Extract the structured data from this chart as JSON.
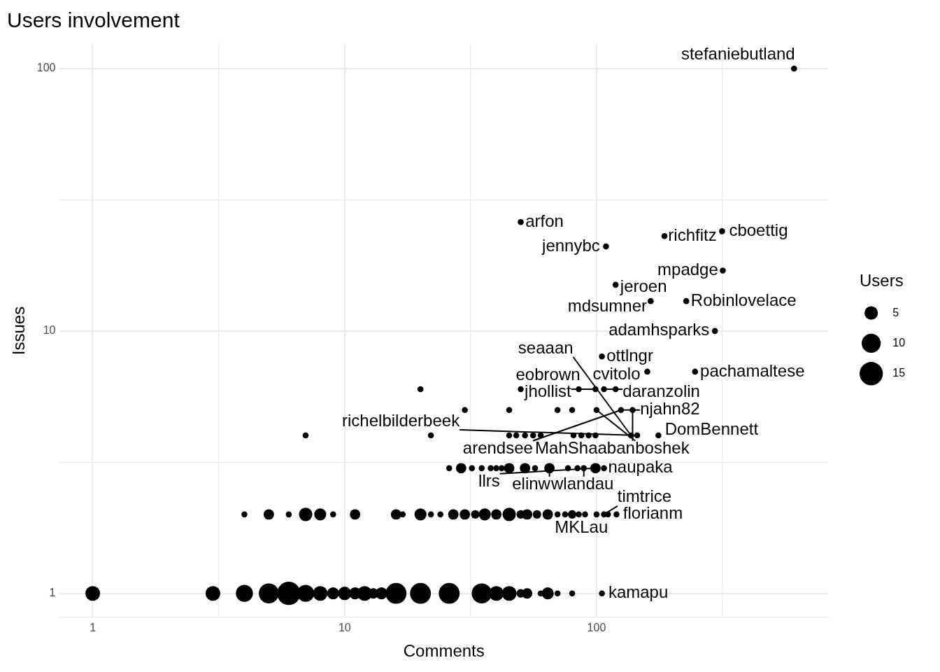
{
  "chart_data": {
    "type": "bubble",
    "title": "Users involvement",
    "xlabel": "Comments",
    "ylabel": "Issues",
    "legend_title": "Users",
    "log": "xy",
    "grid": true,
    "xlim": [
      0.74,
      830
    ],
    "ylim": [
      0.81,
      124
    ],
    "xticks": [
      1,
      {
        "value": 3.162,
        "label": null
      },
      10,
      {
        "value": 31.62,
        "label": null
      },
      100,
      {
        "value": 316.2,
        "label": null
      }
    ],
    "yticks": [
      1,
      {
        "value": 3.162,
        "label": null
      },
      10,
      {
        "value": 31.62,
        "label": null
      },
      100
    ],
    "size_legend": [
      5,
      10,
      15
    ],
    "series": [
      {
        "color": "#000000",
        "x": [
          1,
          3,
          4,
          5,
          6,
          7,
          8,
          9,
          10,
          11,
          12,
          13,
          14,
          16,
          20,
          26,
          35,
          40,
          45,
          50,
          53,
          60,
          64,
          70,
          80,
          105,
          4,
          5,
          6,
          7,
          8,
          9,
          11,
          16,
          17,
          20,
          22,
          24,
          27,
          30,
          33,
          36,
          40,
          45,
          50,
          53,
          58,
          64,
          70,
          75,
          80,
          85,
          90,
          100,
          107,
          111,
          120,
          26,
          29,
          32,
          35,
          38,
          40,
          42,
          45,
          52,
          57,
          65,
          77,
          84,
          89,
          99,
          107,
          7,
          22,
          45,
          48,
          52,
          56,
          60,
          81,
          87,
          93,
          99,
          137,
          145,
          176,
          30,
          45,
          70,
          80,
          100,
          125,
          139,
          20,
          50,
          85,
          99,
          107,
          119,
          159,
          246,
          105,
          295,
          164,
          227,
          119,
          317,
          109,
          186,
          315,
          50,
          608
        ],
        "values": [
          1,
          1,
          1,
          1,
          1,
          1,
          1,
          1,
          1,
          1,
          1,
          1,
          1,
          1,
          1,
          1,
          1,
          1,
          1,
          1,
          1,
          1,
          1,
          1,
          1,
          1,
          2,
          2,
          2,
          2,
          2,
          2,
          2,
          2,
          2,
          2,
          2,
          2,
          2,
          2,
          2,
          2,
          2,
          2,
          2,
          2,
          2,
          2,
          2,
          2,
          2,
          2,
          2,
          2,
          2,
          2,
          2,
          3,
          3,
          3,
          3,
          3,
          3,
          3,
          3,
          3,
          3,
          3,
          3,
          3,
          3,
          3,
          3,
          4,
          4,
          4,
          4,
          4,
          4,
          4,
          4,
          4,
          4,
          4,
          4,
          4,
          4,
          5,
          5,
          5,
          5,
          5,
          5,
          5,
          6,
          6,
          6,
          6,
          6,
          6,
          7,
          7,
          8,
          10,
          13,
          13,
          15,
          17,
          21,
          23,
          24,
          26,
          100
        ],
        "sizes": [
          6,
          6,
          8,
          11,
          15,
          8,
          6,
          4,
          5,
          4,
          6,
          3,
          4,
          12,
          12,
          12,
          11,
          6,
          6,
          2,
          3,
          1,
          4,
          1,
          1,
          1,
          1,
          3,
          1,
          5,
          4,
          1,
          3,
          3,
          1,
          4,
          1,
          1,
          3,
          3,
          2,
          4,
          3,
          5,
          2,
          3,
          2,
          3,
          1,
          1,
          2,
          1,
          1,
          1,
          1,
          1,
          1,
          1,
          3,
          1,
          1,
          1,
          1,
          1,
          3,
          3,
          1,
          3,
          1,
          1,
          1,
          3,
          1,
          1,
          1,
          1,
          1,
          1,
          1,
          1,
          1,
          1,
          1,
          1,
          1,
          1,
          1,
          1,
          1,
          1,
          1,
          1,
          1,
          1,
          1,
          1,
          1,
          1,
          1,
          1,
          1,
          1,
          1,
          1,
          1,
          1,
          1,
          1,
          1,
          1,
          1,
          1,
          1
        ]
      }
    ],
    "annotations": [
      {
        "text": "stefaniebutland",
        "x": 608,
        "y": 100
      },
      {
        "text": "arfon",
        "x": 50,
        "y": 26
      },
      {
        "text": "cboettig",
        "x": 315,
        "y": 24
      },
      {
        "text": "richfitz",
        "x": 186,
        "y": 23
      },
      {
        "text": "jennybc",
        "x": 109,
        "y": 21
      },
      {
        "text": "mpadge",
        "x": 317,
        "y": 17
      },
      {
        "text": "jeroen",
        "x": 119,
        "y": 15
      },
      {
        "text": "Robinlovelace",
        "x": 227,
        "y": 13
      },
      {
        "text": "mdsumner",
        "x": 164,
        "y": 13
      },
      {
        "text": "adamhsparks",
        "x": 295,
        "y": 10
      },
      {
        "text": "ottlngr",
        "x": 105,
        "y": 8
      },
      {
        "text": "cvitolo",
        "x": 159,
        "y": 7
      },
      {
        "text": "pachamaltese",
        "x": 246,
        "y": 7
      },
      {
        "text": "daranzolin",
        "x": 107,
        "y": 6
      },
      {
        "text": "eobrown",
        "x": 85,
        "y": 6
      },
      {
        "text": "jhollist",
        "x": 99,
        "y": 6
      },
      {
        "text": "njahn82",
        "x": 125,
        "y": 5
      },
      {
        "text": "MahShaaban",
        "x": 139,
        "y": 5
      },
      {
        "text": "boshek",
        "x": 100,
        "y": 5
      },
      {
        "text": "arendsee",
        "x": 125,
        "y": 5
      },
      {
        "text": "DomBennett",
        "x": 176,
        "y": 4
      },
      {
        "text": "seaaan",
        "x": 137,
        "y": 4
      },
      {
        "text": "richelbilderbeek",
        "x": 145,
        "y": 4
      },
      {
        "text": "elinw",
        "x": 65,
        "y": 3
      },
      {
        "text": "wlandau",
        "x": 89,
        "y": 3
      },
      {
        "text": "naupaka",
        "x": 107,
        "y": 3
      },
      {
        "text": "llrs",
        "x": 99,
        "y": 3
      },
      {
        "text": "florianm",
        "x": 120,
        "y": 2
      },
      {
        "text": "MKLau",
        "x": 111,
        "y": 2
      },
      {
        "text": "timtrice",
        "x": 107,
        "y": 2
      },
      {
        "text": "kamapu",
        "x": 105,
        "y": 1
      }
    ]
  }
}
